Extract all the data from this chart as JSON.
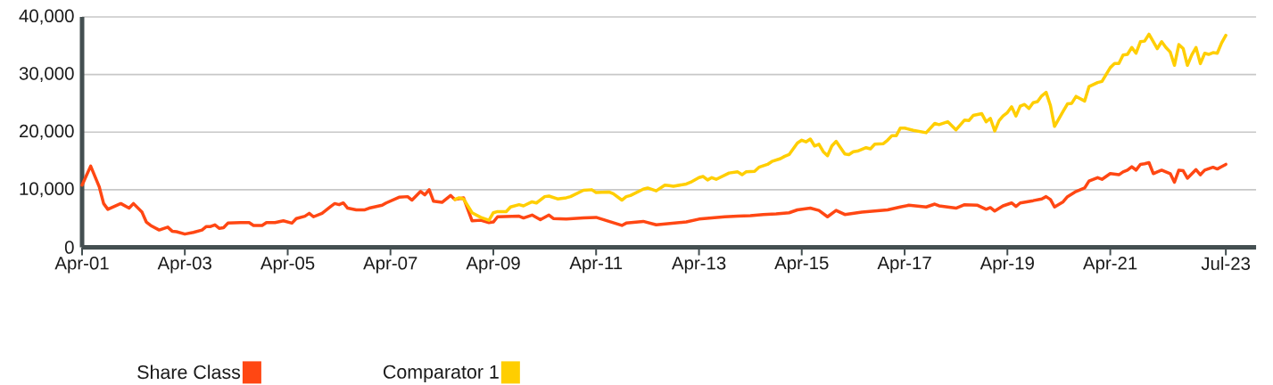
{
  "chart_data": {
    "type": "line",
    "series": [
      {
        "name": "Share Class",
        "color": "#ff4713",
        "x": [
          "2001-04",
          "2001-06",
          "2001-08",
          "2001-09",
          "2001-10",
          "2002-01",
          "2002-03",
          "2002-04",
          "2002-06",
          "2002-07",
          "2002-08",
          "2002-10",
          "2002-12",
          "2003-01",
          "2003-02",
          "2003-04",
          "2003-06",
          "2003-08",
          "2003-09",
          "2003-10",
          "2003-11",
          "2003-12",
          "2004-01",
          "2004-02",
          "2004-05",
          "2004-07",
          "2004-08",
          "2004-10",
          "2004-11",
          "2005-01",
          "2005-03",
          "2005-05",
          "2005-06",
          "2005-08",
          "2005-09",
          "2005-10",
          "2005-12",
          "2006-02",
          "2006-03",
          "2006-04",
          "2006-05",
          "2006-06",
          "2006-08",
          "2006-10",
          "2006-11",
          "2007-02",
          "2007-03",
          "2007-06",
          "2007-08",
          "2007-09",
          "2007-11",
          "2007-12",
          "2008-01",
          "2008-02",
          "2008-04",
          "2008-06",
          "2008-07",
          "2008-09",
          "2008-11",
          "2009-01",
          "2009-03",
          "2009-04",
          "2009-05",
          "2009-10",
          "2009-11",
          "2010-01",
          "2010-03",
          "2010-05",
          "2010-06",
          "2010-09",
          "2011-01",
          "2011-04",
          "2011-07",
          "2011-10",
          "2011-11",
          "2012-03",
          "2012-06",
          "2013-01",
          "2013-04",
          "2013-07",
          "2013-10",
          "2014-01",
          "2014-04",
          "2014-07",
          "2014-10",
          "2015-01",
          "2015-03",
          "2015-06",
          "2015-08",
          "2015-10",
          "2015-12",
          "2016-02",
          "2016-06",
          "2016-12",
          "2017-03",
          "2017-05",
          "2017-09",
          "2017-11",
          "2017-12",
          "2018-04",
          "2018-06",
          "2018-09",
          "2018-11",
          "2018-12",
          "2019-01",
          "2019-03",
          "2019-05",
          "2019-06",
          "2019-07",
          "2019-10",
          "2019-12",
          "2020-01",
          "2020-02",
          "2020-03",
          "2020-05",
          "2020-06",
          "2020-08",
          "2020-10",
          "2020-11",
          "2021-01",
          "2021-02",
          "2021-04",
          "2021-06",
          "2021-07",
          "2021-08",
          "2021-09",
          "2021-10",
          "2021-11",
          "2021-12",
          "2022-01",
          "2022-02",
          "2022-03",
          "2022-04",
          "2022-05",
          "2022-06",
          "2022-07",
          "2022-08",
          "2022-09",
          "2022-10",
          "2022-12",
          "2023-01",
          "2023-02",
          "2023-04",
          "2023-05",
          "2023-06",
          "2023-07"
        ],
        "values": [
          10800,
          14100,
          10500,
          7600,
          6600,
          7600,
          6800,
          7600,
          6100,
          4400,
          3800,
          3000,
          3500,
          2800,
          2700,
          2300,
          2600,
          3000,
          3600,
          3600,
          3900,
          3300,
          3400,
          4200,
          4300,
          4300,
          3800,
          3800,
          4300,
          4300,
          4600,
          4200,
          5000,
          5400,
          5900,
          5300,
          5900,
          7100,
          7600,
          7400,
          7700,
          6800,
          6500,
          6500,
          6800,
          7300,
          7700,
          8700,
          8800,
          8200,
          9700,
          9100,
          10000,
          8000,
          7800,
          9000,
          8300,
          8600,
          4600,
          4700,
          4300,
          4400,
          5300,
          5400,
          5100,
          5600,
          4800,
          5600,
          5000,
          4900,
          5100,
          5200,
          4500,
          3800,
          4200,
          4500,
          3900,
          4400,
          4900,
          5100,
          5300,
          5400,
          5500,
          5700,
          5800,
          6000,
          6500,
          6800,
          6400,
          5300,
          6400,
          5700,
          6100,
          6500,
          7000,
          7300,
          7000,
          7500,
          7200,
          6800,
          7400,
          7300,
          6600,
          6900,
          6300,
          7200,
          7700,
          7100,
          7700,
          8100,
          8400,
          8800,
          8300,
          7000,
          7900,
          8800,
          9700,
          10300,
          11500,
          12100,
          11800,
          12800,
          12600,
          13100,
          13400,
          14000,
          13400,
          14400,
          14500,
          14700,
          12800,
          13100,
          13400,
          13100,
          12800,
          11300,
          13400,
          13300,
          12000,
          13500,
          12600,
          13400,
          13900,
          13600,
          14000,
          14400
        ]
      },
      {
        "name": "Comparator 1",
        "color": "#ffce00",
        "x": [
          "2008-07",
          "2008-08",
          "2008-09",
          "2008-11",
          "2009-01",
          "2009-03",
          "2009-04",
          "2009-05",
          "2009-07",
          "2009-08",
          "2009-10",
          "2009-11",
          "2010-01",
          "2010-02",
          "2010-04",
          "2010-05",
          "2010-07",
          "2010-09",
          "2010-10",
          "2011-01",
          "2011-03",
          "2011-04",
          "2011-07",
          "2011-08",
          "2011-10",
          "2011-11",
          "2011-12",
          "2012-03",
          "2012-04",
          "2012-06",
          "2012-08",
          "2012-09",
          "2012-10",
          "2013-01",
          "2013-02",
          "2013-04",
          "2013-05",
          "2013-06",
          "2013-07",
          "2013-08",
          "2013-11",
          "2014-01",
          "2014-02",
          "2014-03",
          "2014-05",
          "2014-06",
          "2014-08",
          "2014-09",
          "2014-11",
          "2014-12",
          "2015-01",
          "2015-03",
          "2015-04",
          "2015-05",
          "2015-06",
          "2015-07",
          "2015-08",
          "2015-09",
          "2015-10",
          "2015-11",
          "2015-12",
          "2016-01",
          "2016-02",
          "2016-03",
          "2016-04",
          "2016-05",
          "2016-07",
          "2016-08",
          "2016-09",
          "2016-11",
          "2016-12",
          "2017-01",
          "2017-02",
          "2017-03",
          "2017-04",
          "2017-06",
          "2017-09",
          "2017-11",
          "2017-12",
          "2018-02",
          "2018-04",
          "2018-06",
          "2018-07",
          "2018-08",
          "2018-10",
          "2018-11",
          "2018-12",
          "2019-01",
          "2019-02",
          "2019-03",
          "2019-04",
          "2019-05",
          "2019-06",
          "2019-07",
          "2019-08",
          "2019-09",
          "2019-10",
          "2019-11",
          "2019-12",
          "2020-01",
          "2020-02",
          "2020-03",
          "2020-05",
          "2020-06",
          "2020-07",
          "2020-08",
          "2020-10",
          "2020-11",
          "2021-01",
          "2021-02",
          "2021-04",
          "2021-05",
          "2021-06",
          "2021-07",
          "2021-08",
          "2021-09",
          "2021-10",
          "2021-11",
          "2021-12",
          "2022-01",
          "2022-02",
          "2022-03",
          "2022-04",
          "2022-05",
          "2022-06",
          "2022-07",
          "2022-08",
          "2022-09",
          "2022-10",
          "2022-11",
          "2022-12",
          "2023-01",
          "2023-02",
          "2023-03",
          "2023-04",
          "2023-05",
          "2023-06",
          "2023-07"
        ],
        "values": [
          8300,
          8600,
          8400,
          6000,
          5200,
          4700,
          6000,
          6200,
          6200,
          7000,
          7400,
          7200,
          7900,
          7700,
          8800,
          8900,
          8400,
          8600,
          8800,
          9900,
          10000,
          9500,
          9600,
          9300,
          8200,
          8800,
          9000,
          10100,
          10300,
          9800,
          10800,
          10700,
          10600,
          11000,
          11300,
          12100,
          12300,
          11700,
          12100,
          11800,
          12900,
          13100,
          12600,
          13100,
          13200,
          13900,
          14400,
          14900,
          15400,
          15800,
          16100,
          18100,
          18600,
          18300,
          18800,
          17600,
          17900,
          16600,
          15900,
          17600,
          18400,
          17300,
          16200,
          16100,
          16600,
          16700,
          17300,
          17100,
          17900,
          18000,
          18600,
          19400,
          19400,
          20700,
          20700,
          20300,
          19900,
          21500,
          21300,
          21800,
          20400,
          22100,
          22000,
          22900,
          23200,
          21800,
          22400,
          20200,
          22000,
          22800,
          23400,
          24400,
          22800,
          24500,
          24800,
          24100,
          25100,
          25300,
          26300,
          26900,
          24600,
          21000,
          23600,
          24900,
          25000,
          26200,
          25400,
          27900,
          28600,
          28800,
          31200,
          31900,
          31900,
          33400,
          33500,
          34700,
          33700,
          35700,
          35800,
          37000,
          35700,
          34500,
          35700,
          34700,
          33900,
          31600,
          35200,
          34500,
          31600,
          33400,
          34700,
          31900,
          33700,
          33500,
          33800,
          33700,
          35500,
          36800
        ]
      }
    ],
    "xlim": [
      "2001-04",
      "2024-02"
    ],
    "xticks": [
      {
        "value": "2001-04",
        "label": "Apr-01"
      },
      {
        "value": "2003-04",
        "label": "Apr-03"
      },
      {
        "value": "2005-04",
        "label": "Apr-05"
      },
      {
        "value": "2007-04",
        "label": "Apr-07"
      },
      {
        "value": "2009-04",
        "label": "Apr-09"
      },
      {
        "value": "2011-04",
        "label": "Apr-11"
      },
      {
        "value": "2013-04",
        "label": "Apr-13"
      },
      {
        "value": "2015-04",
        "label": "Apr-15"
      },
      {
        "value": "2017-04",
        "label": "Apr-17"
      },
      {
        "value": "2019-04",
        "label": "Apr-19"
      },
      {
        "value": "2021-04",
        "label": "Apr-21"
      },
      {
        "value": "2023-07",
        "label": "Jul-23"
      }
    ],
    "ylim": [
      0,
      40000
    ],
    "yticks": [
      0,
      {
        "value": 10000,
        "label": "10,000"
      },
      {
        "value": 20000,
        "label": "20,000"
      },
      {
        "value": 30000,
        "label": "30,000"
      },
      {
        "value": 40000,
        "label": "40,000"
      }
    ],
    "grid": "y",
    "legend": "bottom left"
  }
}
